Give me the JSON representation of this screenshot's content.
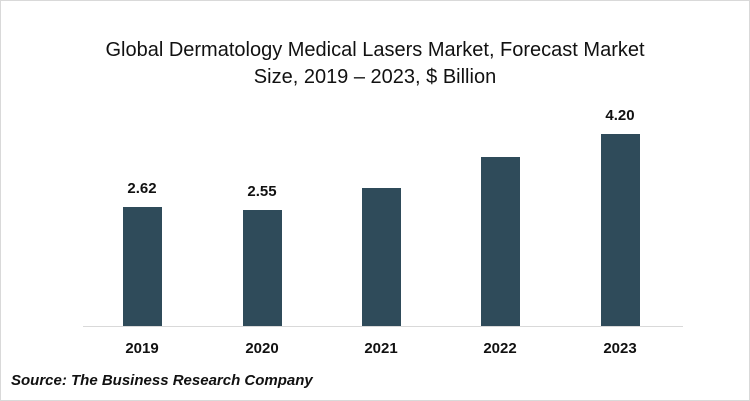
{
  "chart_data": {
    "type": "bar",
    "title": "Global Dermatology Medical Lasers Market, Forecast Market Size, 2019 – 2023, $ Billion",
    "title_lines": [
      "Global Dermatology Medical Lasers Market, Forecast Market",
      "Size, 2019 – 2023, $ Billion"
    ],
    "categories": [
      "2019",
      "2020",
      "2021",
      "2022",
      "2023"
    ],
    "values": [
      2.62,
      2.55,
      3.03,
      3.71,
      4.2
    ],
    "data_labels": [
      "2.62",
      "2.55",
      "",
      "",
      "4.20"
    ],
    "xlabel": "",
    "ylabel": "$ Billion",
    "ylim": [
      0,
      4.95
    ],
    "grid": false,
    "legend": null,
    "bar_color": "#2f4b5a",
    "source": "Source: The Business Research Company"
  }
}
